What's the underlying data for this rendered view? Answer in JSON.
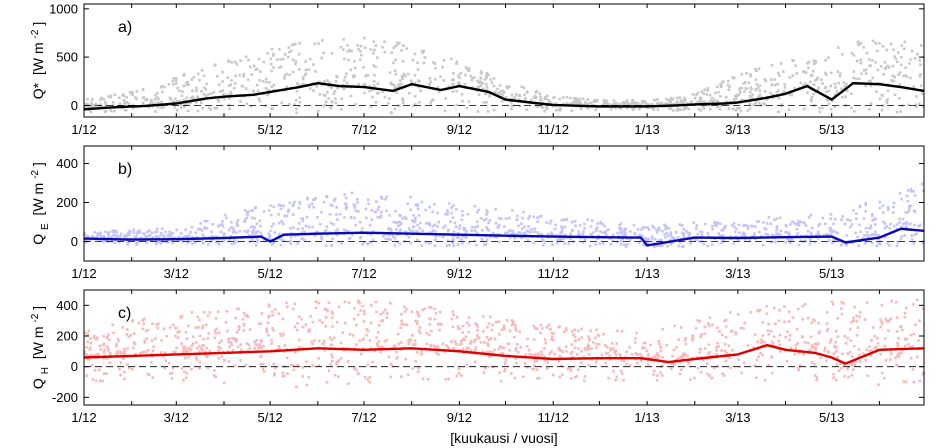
{
  "xlabel": "[kuukausi / vuosi]",
  "x_tick_labels": [
    "1/12",
    "3/12",
    "5/12",
    "7/12",
    "9/12",
    "11/12",
    "1/13",
    "3/13",
    "5/13"
  ],
  "x_tick_dates": [
    "2012-01-01",
    "2012-03-01",
    "2012-05-01",
    "2012-07-01",
    "2012-09-01",
    "2012-11-01",
    "2013-01-01",
    "2013-03-01",
    "2013-05-01"
  ],
  "x_range": [
    "2012-01-01",
    "2013-06-30"
  ],
  "zero_line": "dashed",
  "chart_data": [
    {
      "type": "scatter",
      "panel_label": "a)",
      "ylabel_main": "Q*",
      "ylabel_unit": "[W m",
      "ylabel_exp": "-2",
      "ylabel_close": "]",
      "ylim": [
        -120,
        1050
      ],
      "yticks": [
        0,
        500,
        1000
      ],
      "scatter_color": "#c8c8c8",
      "line_color": "#000000",
      "mean_series": {
        "x": [
          "2012-01-01",
          "2012-01-20",
          "2012-02-10",
          "2012-03-01",
          "2012-03-20",
          "2012-04-01",
          "2012-04-20",
          "2012-05-01",
          "2012-05-20",
          "2012-06-01",
          "2012-06-15",
          "2012-07-01",
          "2012-07-20",
          "2012-08-01",
          "2012-08-20",
          "2012-09-01",
          "2012-09-20",
          "2012-10-01",
          "2012-10-20",
          "2012-11-01",
          "2012-11-20",
          "2012-12-01",
          "2012-12-20",
          "2013-01-01",
          "2013-01-20",
          "2013-02-01",
          "2013-02-20",
          "2013-03-01",
          "2013-03-20",
          "2013-04-01",
          "2013-04-15",
          "2013-05-01",
          "2013-05-15",
          "2013-06-01",
          "2013-06-15",
          "2013-06-30"
        ],
        "y": [
          -40,
          -20,
          -5,
          20,
          70,
          90,
          110,
          140,
          190,
          230,
          200,
          190,
          150,
          220,
          160,
          200,
          140,
          60,
          25,
          5,
          -5,
          -10,
          -10,
          -10,
          0,
          10,
          20,
          30,
          80,
          120,
          200,
          60,
          230,
          220,
          190,
          150
        ]
      },
      "scatter_spread": {
        "x": [
          "2012-01-01",
          "2012-02-01",
          "2012-03-01",
          "2012-04-01",
          "2012-05-01",
          "2012-06-01",
          "2012-07-01",
          "2012-08-01",
          "2012-09-01",
          "2012-10-01",
          "2012-11-01",
          "2012-12-01",
          "2013-01-01",
          "2013-02-01",
          "2013-03-01",
          "2013-04-01",
          "2013-05-01",
          "2013-06-01",
          "2013-06-30"
        ],
        "low": [
          -80,
          -70,
          -60,
          -60,
          -70,
          -80,
          -80,
          -80,
          -80,
          -70,
          -60,
          -50,
          -50,
          -60,
          -60,
          -70,
          -80,
          -80,
          -80
        ],
        "high": [
          60,
          150,
          300,
          450,
          600,
          700,
          720,
          620,
          460,
          250,
          100,
          60,
          50,
          120,
          330,
          470,
          620,
          700,
          650
        ]
      }
    },
    {
      "type": "scatter",
      "panel_label": "b)",
      "ylabel_main": "Q",
      "ylabel_sub": "E",
      "ylabel_unit": "[W m",
      "ylabel_exp": "-2",
      "ylabel_close": "]",
      "ylim": [
        -100,
        490
      ],
      "yticks": [
        0,
        200,
        400
      ],
      "scatter_color": "#c4c4f7",
      "line_color": "#0a0ab4",
      "mean_series": {
        "x": [
          "2012-01-01",
          "2012-02-01",
          "2012-03-01",
          "2012-04-01",
          "2012-04-25",
          "2012-05-01",
          "2012-05-10",
          "2012-06-01",
          "2012-07-01",
          "2012-08-01",
          "2012-09-01",
          "2012-10-01",
          "2012-11-01",
          "2012-12-01",
          "2012-12-28",
          "2013-01-01",
          "2013-02-01",
          "2013-03-01",
          "2013-04-01",
          "2013-05-01",
          "2013-05-10",
          "2013-06-01",
          "2013-06-15",
          "2013-06-30"
        ],
        "y": [
          15,
          10,
          12,
          18,
          25,
          0,
          35,
          40,
          45,
          40,
          35,
          30,
          25,
          22,
          20,
          -20,
          20,
          18,
          22,
          25,
          -5,
          20,
          65,
          55
        ]
      },
      "scatter_spread": {
        "x": [
          "2012-01-01",
          "2012-03-01",
          "2012-05-01",
          "2012-07-01",
          "2012-09-01",
          "2012-11-01",
          "2013-01-01",
          "2013-03-01",
          "2013-05-01",
          "2013-06-01",
          "2013-06-30"
        ],
        "low": [
          -15,
          -15,
          -20,
          -25,
          -25,
          -20,
          -30,
          -20,
          -20,
          -25,
          -25
        ],
        "high": [
          50,
          70,
          200,
          260,
          200,
          130,
          80,
          120,
          140,
          220,
          300
        ]
      }
    },
    {
      "type": "scatter",
      "panel_label": "c)",
      "ylabel_main": "Q",
      "ylabel_sub": "H",
      "ylabel_unit": "[W m",
      "ylabel_exp": "-2",
      "ylabel_close": "]",
      "ylim": [
        -250,
        500
      ],
      "yticks": [
        -200,
        0,
        200,
        400
      ],
      "scatter_color": "#f7b9b9",
      "line_color": "#e00000",
      "mean_series": {
        "x": [
          "2012-01-01",
          "2012-02-01",
          "2012-03-01",
          "2012-04-01",
          "2012-05-01",
          "2012-06-01",
          "2012-07-01",
          "2012-08-01",
          "2012-09-01",
          "2012-10-01",
          "2012-11-01",
          "2012-12-01",
          "2012-12-28",
          "2013-01-15",
          "2013-02-01",
          "2013-03-01",
          "2013-03-20",
          "2013-04-01",
          "2013-04-20",
          "2013-05-01",
          "2013-05-10",
          "2013-06-01",
          "2013-06-30"
        ],
        "y": [
          60,
          70,
          80,
          90,
          100,
          120,
          110,
          120,
          100,
          70,
          50,
          55,
          55,
          30,
          50,
          80,
          140,
          110,
          90,
          60,
          20,
          110,
          120
        ]
      },
      "scatter_spread": {
        "x": [
          "2012-01-01",
          "2012-03-01",
          "2012-05-01",
          "2012-07-01",
          "2012-09-01",
          "2012-11-01",
          "2013-01-01",
          "2013-03-01",
          "2013-05-01",
          "2013-06-30"
        ],
        "low": [
          -100,
          -110,
          -140,
          -120,
          -100,
          -90,
          -100,
          -120,
          -130,
          -110
        ],
        "high": [
          260,
          350,
          430,
          450,
          360,
          270,
          220,
          380,
          430,
          460
        ]
      }
    }
  ]
}
